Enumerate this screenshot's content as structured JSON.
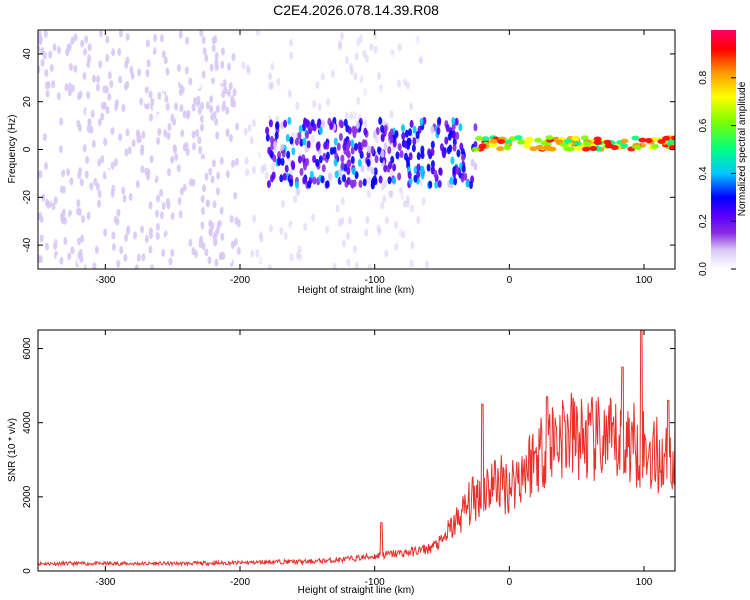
{
  "title": "C2E4.2026.078.14.39.R08",
  "colors": {
    "colorbar": [
      "#ffffff",
      "#d8c8f5",
      "#8a2be2",
      "#5a00ff",
      "#0000ff",
      "#00c8ff",
      "#00ff80",
      "#80ff00",
      "#ffff00",
      "#ff9900",
      "#ff0000",
      "#ff0066"
    ],
    "snr_line": "#e8302b"
  },
  "chart_data": [
    {
      "type": "heatmap",
      "title": "C2E4.2026.078.14.39.R08",
      "xlabel": "Height of straight line (km)",
      "ylabel": "Frequency (Hz)",
      "xlim": [
        -350,
        123
      ],
      "ylim": [
        -50,
        50
      ],
      "x_ticks": [
        -300,
        -200,
        -100,
        0,
        100
      ],
      "y_ticks": [
        -40,
        -20,
        0,
        20,
        40
      ],
      "colorbar": {
        "label": "Normalized spectral amplitude",
        "range": [
          0.0,
          1.0
        ],
        "ticks": [
          0.0,
          0.2,
          0.4,
          0.6,
          0.8
        ]
      },
      "features": [
        {
          "x_range": [
            -350,
            -200
          ],
          "freq_range": [
            -50,
            50
          ],
          "amplitude": [
            0.02,
            0.12
          ]
        },
        {
          "x_range": [
            -200,
            -60
          ],
          "freq_range": [
            -50,
            50
          ],
          "amplitude": [
            0.01,
            0.06
          ]
        },
        {
          "x_range": [
            -180,
            -25
          ],
          "freq_range": [
            -15,
            12
          ],
          "amplitude": [
            0.1,
            0.45
          ]
        },
        {
          "x_range": [
            -25,
            123
          ],
          "freq_range": [
            0,
            5
          ],
          "amplitude": [
            0.5,
            0.95
          ]
        }
      ]
    },
    {
      "type": "line",
      "xlabel": "Height of straight line (km)",
      "ylabel": "SNR (10 * v/v)",
      "xlim": [
        -350,
        123
      ],
      "ylim": [
        0,
        6500
      ],
      "x_ticks": [
        -300,
        -200,
        -100,
        0,
        100
      ],
      "y_ticks": [
        0,
        2000,
        4000,
        6000
      ],
      "series": [
        {
          "x": [
            -350,
            -300,
            -250,
            -200,
            -175,
            -150,
            -125,
            -100,
            -90,
            -75,
            -60,
            -50,
            -40,
            -30,
            -20,
            -10,
            0,
            10,
            20,
            30,
            40,
            50,
            60,
            70,
            80,
            90,
            100,
            110,
            123
          ],
          "y": [
            200,
            200,
            200,
            220,
            250,
            250,
            300,
            400,
            450,
            500,
            600,
            800,
            1300,
            1800,
            2200,
            2400,
            2300,
            2700,
            3100,
            3500,
            3700,
            3600,
            3500,
            3500,
            3400,
            3500,
            3300,
            3100,
            2900
          ],
          "peaks": [
            {
              "x": -95,
              "y": 1300
            },
            {
              "x": -20,
              "y": 4500
            },
            {
              "x": 28,
              "y": 4700
            },
            {
              "x": 84,
              "y": 5500
            },
            {
              "x": 98,
              "y": 6500
            },
            {
              "x": 118,
              "y": 4600
            }
          ]
        }
      ]
    }
  ]
}
